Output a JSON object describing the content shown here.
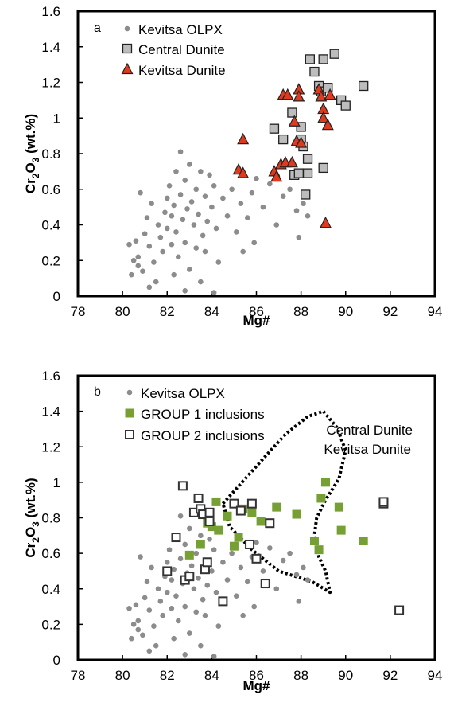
{
  "chart_data": [
    {
      "type": "scatter",
      "panel_label": "a",
      "xlabel": "Mg#",
      "ylabel_parts": {
        "base": "Cr",
        "sub1": "2",
        "mid": "O",
        "sub2": "3",
        "tail": " (wt.%)"
      },
      "xlim": [
        78,
        94
      ],
      "ylim": [
        0,
        1.6
      ],
      "xticks": [
        "78",
        "80",
        "82",
        "84",
        "86",
        "88",
        "90",
        "92",
        "94"
      ],
      "yticks": [
        "0",
        "0.2",
        "0.4",
        "0.6",
        "0.8",
        "1",
        "1.2",
        "1.4",
        "1.6"
      ],
      "grid": false,
      "legend_placement": "top-left",
      "series": [
        {
          "name": "Kevitsa OLPX",
          "marker": "circle",
          "color": "#8c8c8c",
          "points": [
            [
              80.3,
              0.29
            ],
            [
              80.4,
              0.12
            ],
            [
              80.5,
              0.2
            ],
            [
              80.6,
              0.31
            ],
            [
              80.7,
              0.22
            ],
            [
              80.8,
              0.58
            ],
            [
              80.9,
              0.14
            ],
            [
              81.0,
              0.35
            ],
            [
              81.1,
              0.44
            ],
            [
              81.2,
              0.28
            ],
            [
              81.3,
              0.52
            ],
            [
              81.4,
              0.19
            ],
            [
              81.5,
              0.08
            ],
            [
              81.6,
              0.4
            ],
            [
              81.7,
              0.33
            ],
            [
              81.8,
              0.25
            ],
            [
              81.9,
              0.47
            ],
            [
              82.0,
              0.55
            ],
            [
              82.0,
              0.38
            ],
            [
              82.1,
              0.62
            ],
            [
              82.2,
              0.29
            ],
            [
              82.2,
              0.45
            ],
            [
              82.3,
              0.51
            ],
            [
              82.4,
              0.7
            ],
            [
              82.4,
              0.36
            ],
            [
              82.5,
              0.22
            ],
            [
              82.6,
              0.81
            ],
            [
              82.6,
              0.57
            ],
            [
              82.7,
              0.43
            ],
            [
              82.8,
              0.65
            ],
            [
              82.8,
              0.3
            ],
            [
              82.9,
              0.49
            ],
            [
              83.0,
              0.74
            ],
            [
              83.0,
              0.15
            ],
            [
              83.1,
              0.53
            ],
            [
              83.2,
              0.4
            ],
            [
              83.3,
              0.6
            ],
            [
              83.3,
              0.27
            ],
            [
              83.4,
              0.46
            ],
            [
              83.5,
              0.7
            ],
            [
              83.5,
              0.08
            ],
            [
              83.6,
              0.34
            ],
            [
              83.7,
              0.56
            ],
            [
              83.8,
              0.42
            ],
            [
              83.9,
              0.68
            ],
            [
              84.0,
              0.5
            ],
            [
              84.1,
              0.62
            ],
            [
              84.2,
              0.38
            ],
            [
              84.3,
              0.19
            ],
            [
              84.5,
              0.55
            ],
            [
              84.7,
              0.45
            ],
            [
              84.9,
              0.6
            ],
            [
              85.1,
              0.36
            ],
            [
              85.3,
              0.52
            ],
            [
              85.4,
              0.25
            ],
            [
              85.6,
              0.44
            ],
            [
              85.8,
              0.58
            ],
            [
              86.0,
              0.66
            ],
            [
              86.3,
              0.5
            ],
            [
              86.6,
              0.63
            ],
            [
              86.9,
              0.4
            ],
            [
              87.2,
              0.56
            ],
            [
              87.5,
              0.6
            ],
            [
              87.8,
              0.48
            ],
            [
              87.9,
              0.33
            ],
            [
              88.1,
              0.52
            ],
            [
              88.3,
              0.45
            ],
            [
              81.2,
              0.05
            ],
            [
              82.8,
              0.03
            ],
            [
              84.1,
              0.02
            ],
            [
              80.7,
              0.17
            ],
            [
              82.3,
              0.12
            ],
            [
              83.7,
              0.25
            ],
            [
              85.9,
              0.3
            ]
          ]
        },
        {
          "name": "Central Dunite",
          "marker": "square",
          "color": "#bdbdbd",
          "points": [
            [
              86.8,
              0.94
            ],
            [
              87.2,
              0.88
            ],
            [
              87.6,
              1.03
            ],
            [
              87.7,
              0.68
            ],
            [
              87.9,
              0.69
            ],
            [
              88.0,
              0.95
            ],
            [
              88.0,
              0.88
            ],
            [
              88.1,
              0.84
            ],
            [
              88.2,
              0.57
            ],
            [
              88.3,
              0.69
            ],
            [
              88.3,
              0.77
            ],
            [
              88.4,
              1.33
            ],
            [
              88.6,
              1.26
            ],
            [
              88.8,
              1.18
            ],
            [
              88.9,
              1.15
            ],
            [
              89.0,
              0.72
            ],
            [
              89.0,
              1.33
            ],
            [
              89.2,
              1.17
            ],
            [
              89.5,
              1.36
            ],
            [
              89.8,
              1.1
            ],
            [
              90.0,
              1.07
            ],
            [
              90.8,
              1.18
            ]
          ]
        },
        {
          "name": "Kevitsa Dunite",
          "marker": "triangle",
          "color": "#e03a1e",
          "points": [
            [
              85.2,
              0.71
            ],
            [
              85.4,
              0.88
            ],
            [
              85.4,
              0.69
            ],
            [
              86.8,
              0.7
            ],
            [
              86.9,
              0.67
            ],
            [
              87.1,
              0.74
            ],
            [
              87.2,
              1.13
            ],
            [
              87.3,
              0.75
            ],
            [
              87.4,
              1.13
            ],
            [
              87.6,
              0.75
            ],
            [
              87.7,
              0.98
            ],
            [
              87.8,
              0.87
            ],
            [
              87.9,
              1.16
            ],
            [
              87.9,
              1.12
            ],
            [
              88.0,
              0.86
            ],
            [
              88.8,
              1.16
            ],
            [
              88.9,
              1.12
            ],
            [
              89.0,
              1.05
            ],
            [
              89.0,
              1.0
            ],
            [
              89.1,
              0.41
            ],
            [
              89.2,
              0.96
            ],
            [
              89.3,
              1.13
            ]
          ]
        }
      ]
    },
    {
      "type": "scatter",
      "panel_label": "b",
      "xlabel": "Mg#",
      "ylabel_parts": {
        "base": "Cr",
        "sub1": "2",
        "mid": "O",
        "sub2": "3",
        "tail": " (wt.%)"
      },
      "xlim": [
        78,
        94
      ],
      "ylim": [
        0,
        1.6
      ],
      "xticks": [
        "78",
        "80",
        "82",
        "84",
        "86",
        "88",
        "90",
        "92",
        "94"
      ],
      "yticks": [
        "0",
        "0.2",
        "0.4",
        "0.6",
        "0.8",
        "1",
        "1.2",
        "1.4",
        "1.6"
      ],
      "grid": false,
      "legend_placement": "top-left",
      "annotation_lines": [
        "Central Dunite",
        "Kevitsa Dunite"
      ],
      "outline_polygon": [
        [
          84.5,
          0.88
        ],
        [
          86.5,
          1.16
        ],
        [
          87.3,
          1.27
        ],
        [
          88.3,
          1.37
        ],
        [
          89.0,
          1.4
        ],
        [
          89.6,
          1.31
        ],
        [
          90.0,
          1.18
        ],
        [
          89.7,
          1.02
        ],
        [
          89.1,
          0.9
        ],
        [
          88.7,
          0.8
        ],
        [
          88.6,
          0.7
        ],
        [
          88.8,
          0.58
        ],
        [
          89.1,
          0.5
        ],
        [
          89.3,
          0.38
        ],
        [
          88.5,
          0.44
        ],
        [
          87.0,
          0.5
        ],
        [
          85.8,
          0.62
        ],
        [
          84.8,
          0.75
        ]
      ],
      "series": [
        {
          "name": "Kevitsa OLPX",
          "marker": "circle",
          "color": "#8c8c8c",
          "points": [
            [
              80.3,
              0.29
            ],
            [
              80.4,
              0.12
            ],
            [
              80.5,
              0.2
            ],
            [
              80.6,
              0.31
            ],
            [
              80.7,
              0.22
            ],
            [
              80.8,
              0.58
            ],
            [
              80.9,
              0.14
            ],
            [
              81.0,
              0.35
            ],
            [
              81.1,
              0.44
            ],
            [
              81.2,
              0.28
            ],
            [
              81.3,
              0.52
            ],
            [
              81.4,
              0.19
            ],
            [
              81.5,
              0.08
            ],
            [
              81.6,
              0.4
            ],
            [
              81.7,
              0.33
            ],
            [
              81.8,
              0.25
            ],
            [
              81.9,
              0.47
            ],
            [
              82.0,
              0.55
            ],
            [
              82.0,
              0.38
            ],
            [
              82.1,
              0.62
            ],
            [
              82.2,
              0.29
            ],
            [
              82.2,
              0.45
            ],
            [
              82.3,
              0.51
            ],
            [
              82.4,
              0.7
            ],
            [
              82.4,
              0.36
            ],
            [
              82.5,
              0.22
            ],
            [
              82.6,
              0.81
            ],
            [
              82.6,
              0.57
            ],
            [
              82.7,
              0.43
            ],
            [
              82.8,
              0.65
            ],
            [
              82.8,
              0.3
            ],
            [
              82.9,
              0.49
            ],
            [
              83.0,
              0.74
            ],
            [
              83.0,
              0.15
            ],
            [
              83.1,
              0.53
            ],
            [
              83.2,
              0.4
            ],
            [
              83.3,
              0.6
            ],
            [
              83.3,
              0.27
            ],
            [
              83.4,
              0.46
            ],
            [
              83.5,
              0.7
            ],
            [
              83.5,
              0.08
            ],
            [
              83.6,
              0.34
            ],
            [
              83.7,
              0.56
            ],
            [
              83.8,
              0.42
            ],
            [
              83.9,
              0.68
            ],
            [
              84.0,
              0.5
            ],
            [
              84.1,
              0.62
            ],
            [
              84.2,
              0.38
            ],
            [
              84.3,
              0.19
            ],
            [
              84.5,
              0.55
            ],
            [
              84.7,
              0.45
            ],
            [
              84.9,
              0.6
            ],
            [
              85.1,
              0.36
            ],
            [
              85.3,
              0.52
            ],
            [
              85.4,
              0.25
            ],
            [
              85.6,
              0.44
            ],
            [
              85.8,
              0.58
            ],
            [
              86.0,
              0.66
            ],
            [
              86.3,
              0.5
            ],
            [
              86.6,
              0.63
            ],
            [
              86.9,
              0.4
            ],
            [
              87.2,
              0.56
            ],
            [
              87.5,
              0.6
            ],
            [
              87.8,
              0.48
            ],
            [
              87.9,
              0.33
            ],
            [
              88.1,
              0.52
            ],
            [
              88.3,
              0.45
            ],
            [
              81.2,
              0.05
            ],
            [
              82.8,
              0.03
            ],
            [
              84.1,
              0.02
            ],
            [
              80.7,
              0.17
            ],
            [
              82.3,
              0.12
            ],
            [
              83.7,
              0.25
            ],
            [
              85.9,
              0.3
            ]
          ]
        },
        {
          "name": "GROUP 1 inclusions",
          "marker": "filled-square",
          "color": "#76a034",
          "points": [
            [
              83.0,
              0.59
            ],
            [
              83.5,
              0.65
            ],
            [
              83.8,
              0.77
            ],
            [
              84.0,
              0.75
            ],
            [
              84.2,
              0.89
            ],
            [
              84.3,
              0.73
            ],
            [
              84.7,
              0.81
            ],
            [
              85.0,
              0.64
            ],
            [
              85.2,
              0.69
            ],
            [
              85.4,
              0.85
            ],
            [
              85.8,
              0.83
            ],
            [
              86.2,
              0.78
            ],
            [
              86.9,
              0.86
            ],
            [
              87.8,
              0.82
            ],
            [
              88.6,
              0.67
            ],
            [
              88.8,
              0.62
            ],
            [
              88.9,
              0.91
            ],
            [
              89.1,
              1.0
            ],
            [
              89.7,
              0.86
            ],
            [
              89.8,
              0.73
            ],
            [
              90.8,
              0.67
            ]
          ]
        },
        {
          "name": "GROUP 2 inclusions",
          "marker": "open-square",
          "color": "#333333",
          "points": [
            [
              82.0,
              0.5
            ],
            [
              82.4,
              0.69
            ],
            [
              82.7,
              0.98
            ],
            [
              82.8,
              0.45
            ],
            [
              83.0,
              0.47
            ],
            [
              83.2,
              0.83
            ],
            [
              83.4,
              0.91
            ],
            [
              83.5,
              0.85
            ],
            [
              83.6,
              0.82
            ],
            [
              83.7,
              0.51
            ],
            [
              83.8,
              0.55
            ],
            [
              83.9,
              0.83
            ],
            [
              83.9,
              0.78
            ],
            [
              84.5,
              0.33
            ],
            [
              85.0,
              0.88
            ],
            [
              85.3,
              0.84
            ],
            [
              85.7,
              0.65
            ],
            [
              85.8,
              0.88
            ],
            [
              86.0,
              0.57
            ],
            [
              86.4,
              0.43
            ],
            [
              86.6,
              0.77
            ],
            [
              91.7,
              0.88
            ],
            [
              91.7,
              0.89
            ],
            [
              92.4,
              0.28
            ]
          ]
        }
      ]
    }
  ]
}
